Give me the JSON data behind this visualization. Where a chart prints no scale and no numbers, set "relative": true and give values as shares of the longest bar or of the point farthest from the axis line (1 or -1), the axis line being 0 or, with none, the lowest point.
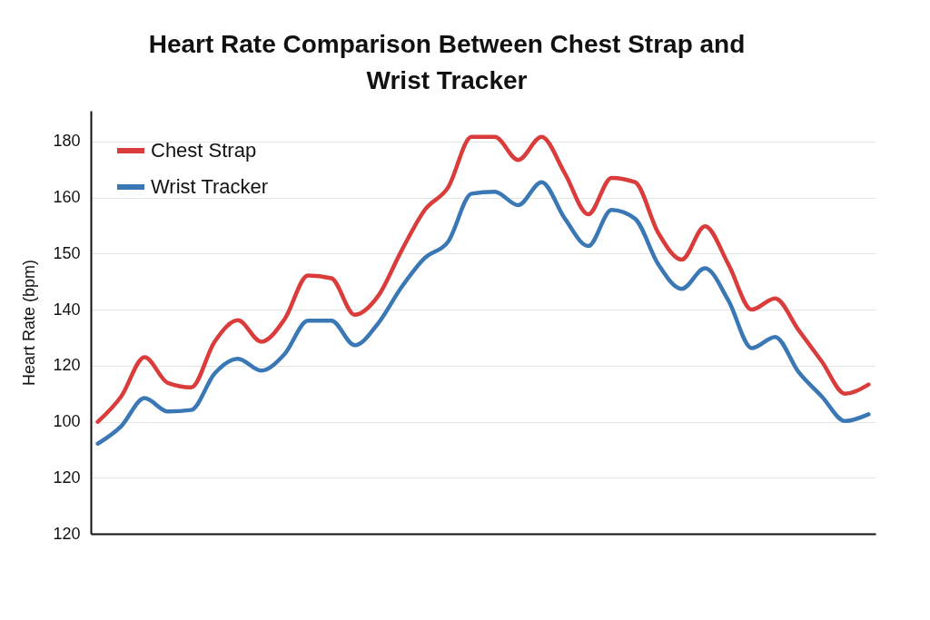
{
  "chart_data": {
    "type": "line",
    "title": "Heart Rate Comparison Between Chest Strap and Wrist Tracker",
    "ylabel": "Heart Rate (bpm)",
    "annotations": [
      "180",
      "160",
      "150",
      "140",
      "120",
      "100",
      "120",
      "120"
    ],
    "categories": [
      null,
      null,
      null,
      null,
      null,
      null,
      null,
      null,
      null,
      null,
      null,
      null,
      null,
      null,
      null,
      null,
      null,
      null,
      null,
      null,
      null,
      null,
      null,
      null,
      null,
      null,
      null,
      null,
      null,
      null,
      null,
      null,
      null,
      null
    ],
    "relative": true,
    "series": [
      {
        "name": "Chest Strap",
        "color": "#d93c3a",
        "values": [
          0.282,
          0.346,
          0.445,
          0.38,
          0.369,
          0.484,
          0.538,
          0.484,
          0.541,
          0.651,
          0.644,
          0.552,
          0.599,
          0.713,
          0.816,
          0.873,
          1,
          1,
          0.942,
          1,
          0.908,
          0.805,
          0.897,
          0.886,
          0.758,
          0.691,
          0.775,
          0.679,
          0.565,
          0.593,
          0.514,
          0.434,
          0.353,
          0.376
        ]
      },
      {
        "name": "Wrist Tracker",
        "color": "#3a78b5",
        "values": [
          0.227,
          0.271,
          0.342,
          0.308,
          0.312,
          0.404,
          0.441,
          0.411,
          0.453,
          0.537,
          0.537,
          0.475,
          0.53,
          0.621,
          0.695,
          0.736,
          0.857,
          0.862,
          0.828,
          0.886,
          0.794,
          0.725,
          0.816,
          0.794,
          0.679,
          0.617,
          0.669,
          0.588,
          0.468,
          0.496,
          0.408,
          0.346,
          0.284,
          0.301
        ]
      }
    ],
    "grid": "y",
    "legend": "top left",
    "tick_labels": "y",
    "line_style": "solid"
  }
}
